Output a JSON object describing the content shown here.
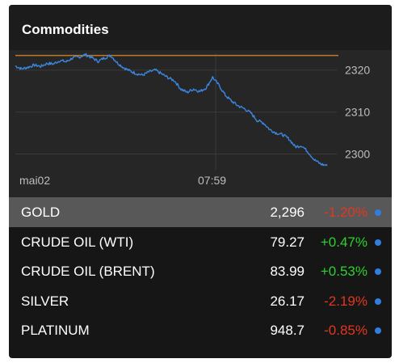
{
  "header": {
    "title": "Commodities"
  },
  "colors": {
    "panel_bg": "#161616",
    "chart_bg": "#262626",
    "line": "#3a86e0",
    "reference_line": "#c07a23",
    "grid": "#3a3a3a",
    "axis_text": "#bdbdbd",
    "selected_row_bg": "#585858",
    "negative": "#e2371f",
    "positive": "#2ed12e",
    "dot": "#2f7fe0"
  },
  "chart_data": {
    "type": "line",
    "series_symbol": "GOLD",
    "x_tick_labels": [
      "mai02",
      "07:59"
    ],
    "y_tick_labels": [
      "2320",
      "2310",
      "2300"
    ],
    "y_ticks": [
      2320,
      2310,
      2300
    ],
    "ylim": [
      2297.0,
      2324.0
    ],
    "reference_value": 2323.5,
    "grid": true,
    "values": [
      2321.0,
      2320.3,
      2320.7,
      2321.2,
      2320.9,
      2321.6,
      2321.5,
      2322.3,
      2322.0,
      2322.9,
      2323.1,
      2323.7,
      2323.0,
      2322.1,
      2322.9,
      2323.5,
      2321.8,
      2320.6,
      2319.8,
      2319.2,
      2318.8,
      2319.6,
      2320.0,
      2319.1,
      2318.2,
      2317.5,
      2315.5,
      2314.7,
      2315.5,
      2314.9,
      2315.8,
      2318.3,
      2316.4,
      2314.0,
      2312.6,
      2311.5,
      2310.8,
      2309.8,
      2308.0,
      2307.4,
      2305.8,
      2305.0,
      2304.6,
      2303.6,
      2301.7,
      2302.0,
      2300.5,
      2298.6,
      2297.6,
      2297.2
    ]
  },
  "rows": [
    {
      "name": "GOLD",
      "price": "2,296",
      "change": "-1.20%",
      "direction": "neg",
      "selected": true
    },
    {
      "name": "CRUDE OIL (WTI)",
      "price": "79.27",
      "change": "+0.47%",
      "direction": "pos",
      "selected": false
    },
    {
      "name": "CRUDE OIL (BRENT)",
      "price": "83.99",
      "change": "+0.53%",
      "direction": "pos",
      "selected": false
    },
    {
      "name": "SILVER",
      "price": "26.17",
      "change": "-2.19%",
      "direction": "neg",
      "selected": false
    },
    {
      "name": "PLATINUM",
      "price": "948.7",
      "change": "-0.85%",
      "direction": "neg",
      "selected": false
    }
  ]
}
